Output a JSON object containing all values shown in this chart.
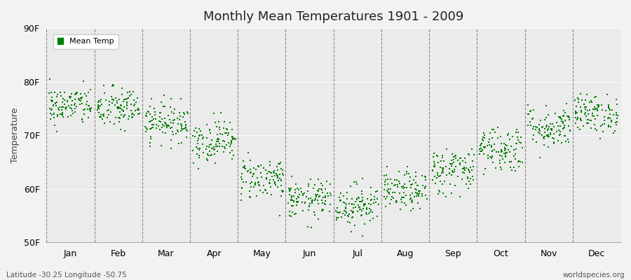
{
  "title": "Monthly Mean Temperatures 1901 - 2009",
  "ylabel": "Temperature",
  "subtitle_left": "Latitude -30.25 Longitude -50.75",
  "subtitle_right": "worldspecies.org",
  "legend_label": "Mean Temp",
  "dot_color": "#008000",
  "background_color": "#f2f2f2",
  "plot_bg_color": "#ebebeb",
  "ylim": [
    50,
    90
  ],
  "yticks": [
    50,
    60,
    70,
    80,
    90
  ],
  "ytick_labels": [
    "50F",
    "60F",
    "70F",
    "80F",
    "90F"
  ],
  "months": [
    "Jan",
    "Feb",
    "Mar",
    "Apr",
    "May",
    "Jun",
    "Jul",
    "Aug",
    "Sep",
    "Oct",
    "Nov",
    "Dec"
  ],
  "month_means": [
    75.5,
    75.0,
    72.5,
    69.0,
    62.0,
    58.0,
    57.0,
    59.5,
    63.5,
    67.5,
    71.5,
    74.0
  ],
  "month_stds": [
    1.8,
    2.0,
    1.8,
    2.0,
    2.0,
    1.8,
    2.0,
    1.8,
    2.2,
    2.2,
    2.0,
    1.8
  ],
  "n_years": 109,
  "dot_size": 3,
  "dpi": 100,
  "figsize": [
    9.0,
    4.0
  ]
}
